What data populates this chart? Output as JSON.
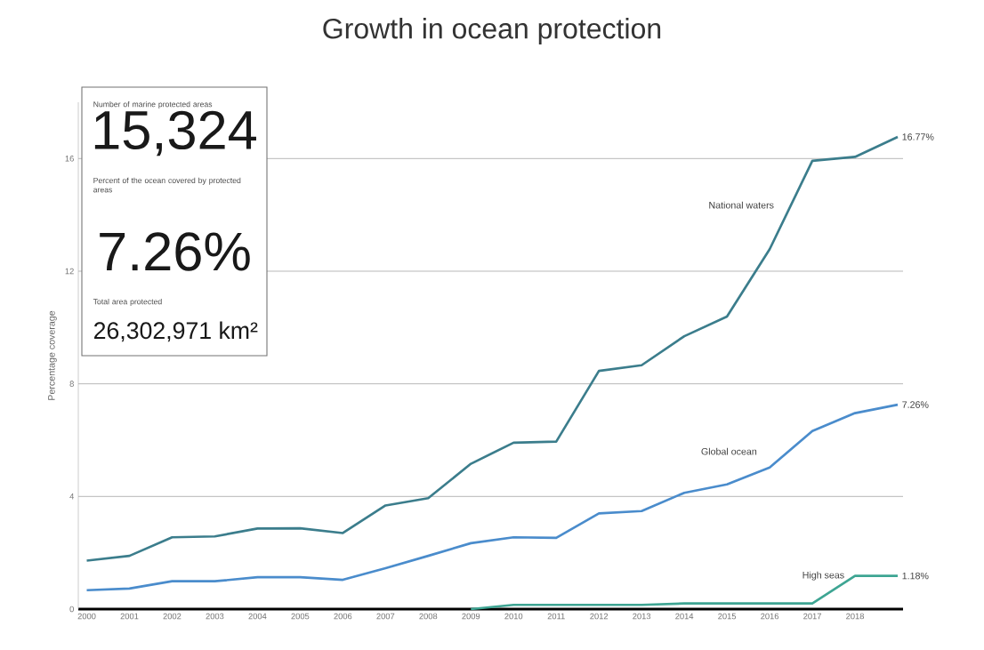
{
  "chart_data": {
    "type": "line",
    "title": "Growth in ocean protection",
    "ylabel": "Percentage coverage",
    "categories": [
      "2000",
      "2001",
      "2002",
      "2003",
      "2004",
      "2005",
      "2006",
      "2007",
      "2008",
      "2009",
      "2010",
      "2011",
      "2012",
      "2013",
      "2014",
      "2015",
      "2016",
      "2017",
      "2018",
      null
    ],
    "series": [
      {
        "name": "National waters",
        "color": "#3b7d8c",
        "values": [
          1.72,
          1.89,
          2.55,
          2.58,
          2.86,
          2.87,
          2.7,
          3.68,
          3.94,
          5.16,
          5.91,
          5.95,
          8.46,
          8.66,
          9.69,
          10.39,
          12.78,
          15.92,
          16.06,
          16.77
        ],
        "value_labels": [
          null,
          null,
          null,
          null,
          null,
          null,
          null,
          null,
          null,
          null,
          null,
          null,
          null,
          null,
          null,
          null,
          null,
          null,
          null,
          "16.77%"
        ]
      },
      {
        "name": "Global ocean",
        "color": "#4a8ccc",
        "values": [
          0.67,
          0.73,
          0.99,
          0.99,
          1.13,
          1.13,
          1.04,
          1.45,
          1.89,
          2.34,
          2.55,
          2.53,
          3.4,
          3.48,
          4.13,
          4.43,
          5.03,
          6.32,
          6.96,
          7.26
        ],
        "value_labels": [
          null,
          null,
          null,
          null,
          null,
          null,
          null,
          null,
          null,
          null,
          null,
          null,
          null,
          null,
          null,
          null,
          null,
          null,
          null,
          "7.26%"
        ]
      },
      {
        "name": "High seas",
        "color": "#3ea593",
        "values": [
          null,
          null,
          null,
          null,
          null,
          null,
          null,
          null,
          null,
          0,
          0.15,
          0.15,
          0.15,
          0.15,
          0.2,
          0.2,
          0.2,
          0.2,
          1.18,
          1.18
        ],
        "value_labels": [
          null,
          null,
          null,
          null,
          null,
          null,
          null,
          null,
          null,
          null,
          null,
          null,
          null,
          null,
          null,
          null,
          null,
          null,
          null,
          "1.18%"
        ]
      }
    ],
    "ylim": [
      0,
      18
    ],
    "yticks": [
      0,
      4,
      8,
      12,
      16
    ],
    "grid": "y",
    "legend": false,
    "marker": "none",
    "line_style": "solid",
    "annotations": [
      "Number of marine protected areas",
      "15,324",
      "Percent of the ocean covered by protected areas",
      "7.26%",
      "Total area protected",
      "26,302,971 km²"
    ]
  }
}
